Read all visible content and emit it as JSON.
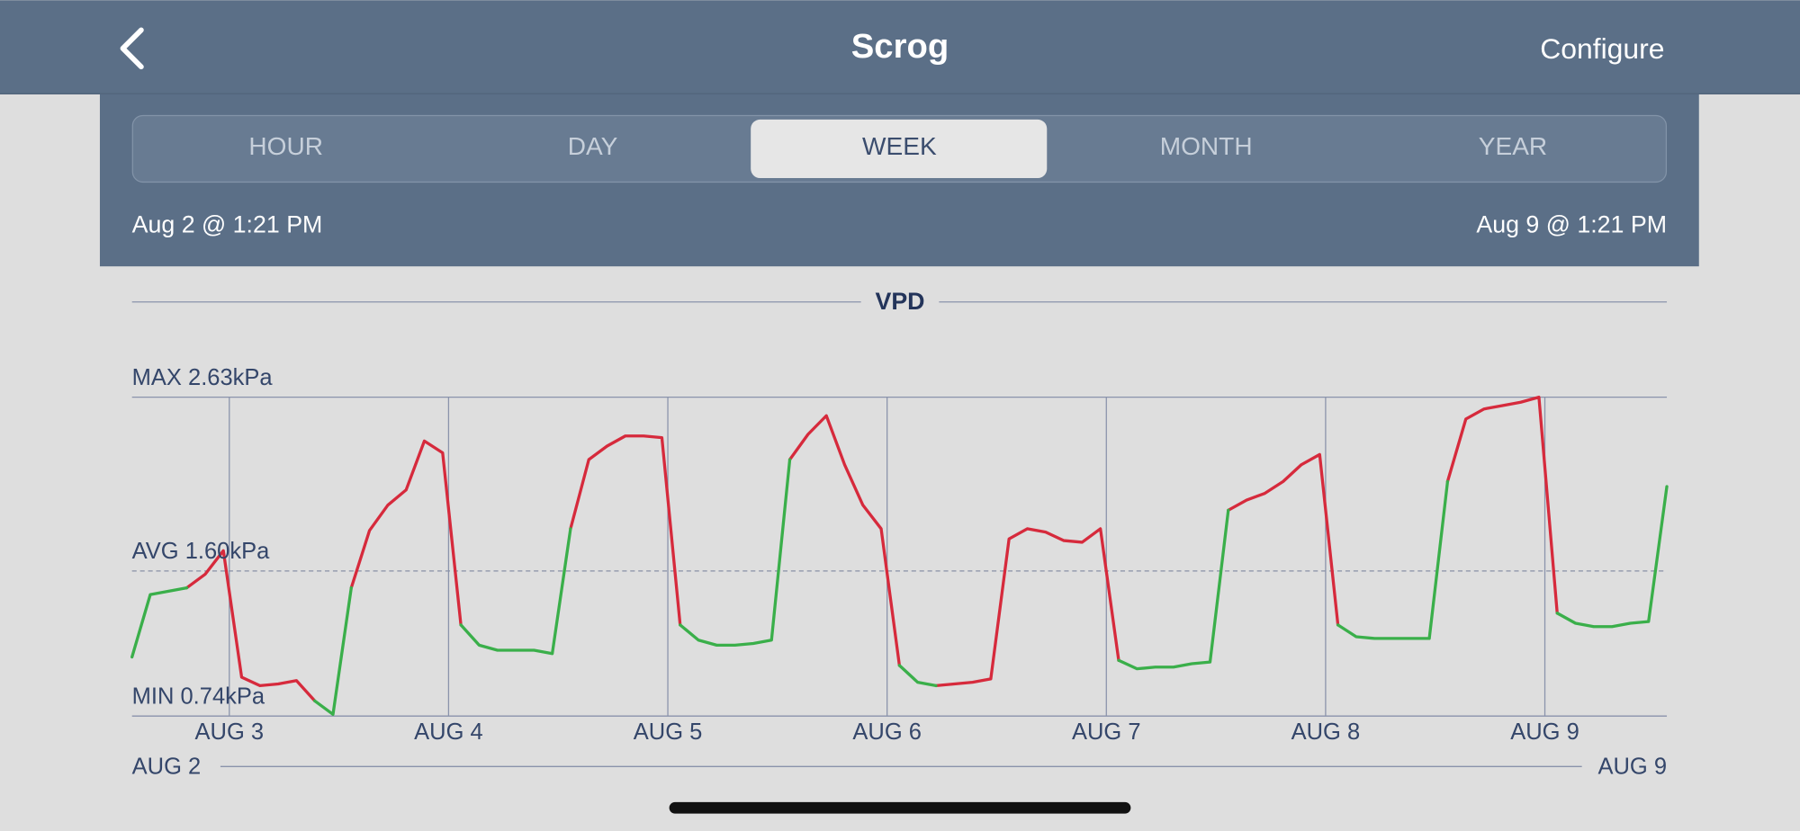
{
  "header": {
    "title": "Scrog",
    "action": "Configure"
  },
  "tabs": [
    "HOUR",
    "DAY",
    "WEEK",
    "MONTH",
    "YEAR"
  ],
  "selected_tab": 2,
  "range": {
    "start": "Aug 2 @ 1:21 PM",
    "end": "Aug 9 @ 1:21 PM"
  },
  "chart_data": {
    "type": "line",
    "title": "VPD",
    "ylim": [
      0.74,
      2.63
    ],
    "yticks": [
      {
        "value": 2.63,
        "label": "MAX 2.63kPa"
      },
      {
        "value": 1.6,
        "label": "AVG 1.60kPa"
      },
      {
        "value": 0.74,
        "label": "MIN 0.74kPa"
      }
    ],
    "xlim": [
      0,
      168
    ],
    "xticks": [
      {
        "value": 10.65,
        "label": "AUG 3"
      },
      {
        "value": 34.65,
        "label": "AUG 4"
      },
      {
        "value": 58.65,
        "label": "AUG 5"
      },
      {
        "value": 82.65,
        "label": "AUG 6"
      },
      {
        "value": 106.65,
        "label": "AUG 7"
      },
      {
        "value": 130.65,
        "label": "AUG 8"
      },
      {
        "value": 154.65,
        "label": "AUG 9"
      }
    ],
    "range_labels": [
      "AUG 2",
      "AUG 9"
    ],
    "series": [
      {
        "color": "#d62a3c",
        "values": [
          null,
          null,
          null,
          1.5,
          1.58,
          1.72,
          0.97,
          0.92,
          0.93,
          0.95,
          0.83,
          null,
          1.5,
          1.84,
          1.99,
          2.08,
          2.37,
          2.3,
          1.28,
          null,
          null,
          null,
          null,
          null,
          1.85,
          2.26,
          2.34,
          2.4,
          2.4,
          2.39,
          1.28,
          null,
          null,
          null,
          null,
          null,
          2.26,
          2.41,
          2.52,
          2.23,
          1.99,
          1.85,
          1.04,
          null,
          0.92,
          0.93,
          0.94,
          0.96,
          1.79,
          1.85,
          1.83,
          1.78,
          1.77,
          1.85,
          1.07,
          null,
          null,
          null,
          null,
          null,
          1.96,
          2.02,
          2.06,
          2.13,
          2.23,
          2.29,
          1.28,
          null,
          null,
          null,
          null,
          null,
          2.13,
          2.5,
          2.56,
          2.58,
          2.6,
          2.63,
          1.35,
          null,
          null,
          null,
          null,
          null,
          null
        ]
      },
      {
        "color": "#3aaf4a",
        "values": [
          1.09,
          1.46,
          1.48,
          1.5,
          null,
          null,
          null,
          null,
          null,
          null,
          0.83,
          0.75,
          1.5,
          null,
          null,
          null,
          null,
          null,
          1.28,
          1.16,
          1.13,
          1.13,
          1.13,
          1.11,
          1.85,
          null,
          null,
          null,
          null,
          null,
          1.28,
          1.19,
          1.16,
          1.16,
          1.17,
          1.19,
          2.26,
          null,
          null,
          null,
          null,
          null,
          1.04,
          0.94,
          0.92,
          null,
          null,
          null,
          null,
          null,
          null,
          null,
          null,
          null,
          1.07,
          1.02,
          1.03,
          1.03,
          1.05,
          1.06,
          1.96,
          null,
          null,
          null,
          null,
          null,
          1.28,
          1.21,
          1.2,
          1.2,
          1.2,
          1.2,
          2.13,
          null,
          null,
          null,
          null,
          null,
          1.35,
          1.29,
          1.27,
          1.27,
          1.29,
          1.3,
          2.1
        ]
      }
    ]
  }
}
